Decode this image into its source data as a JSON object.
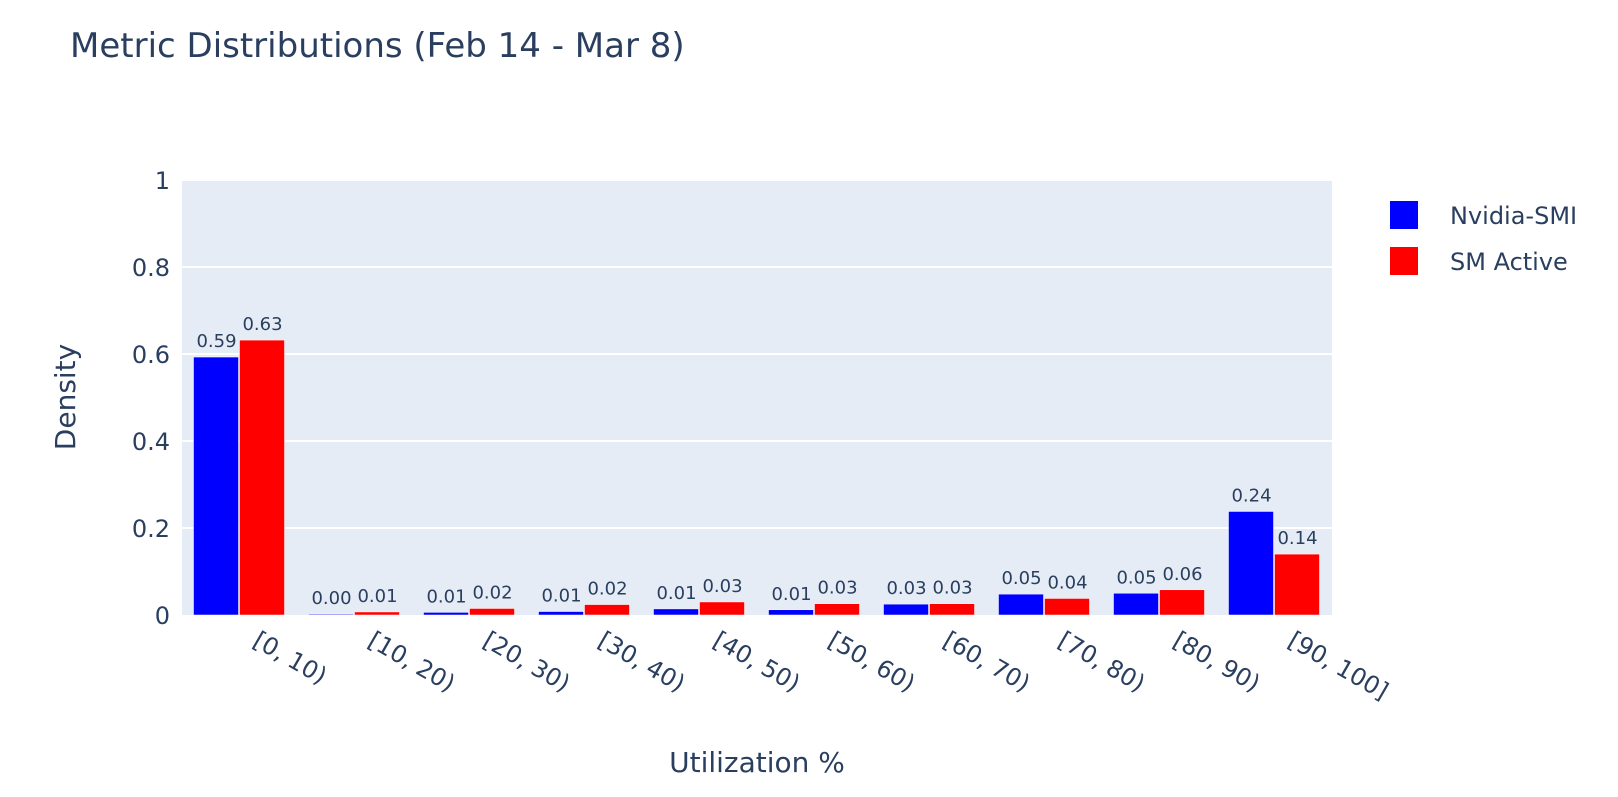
{
  "chart_data": {
    "type": "bar",
    "title": "Metric Distributions (Feb 14 - Mar 8)",
    "xlabel": "Utilization %",
    "ylabel": "Density",
    "ylim": [
      0,
      1
    ],
    "yticks": [
      0,
      0.2,
      0.4,
      0.6,
      0.8,
      1
    ],
    "ytick_labels": [
      "0",
      "0.2",
      "0.4",
      "0.6",
      "0.8",
      "1"
    ],
    "categories": [
      "[0, 10)",
      "[10, 20)",
      "[20, 30)",
      "[30, 40)",
      "[40, 50)",
      "[50, 60)",
      "[60, 70)",
      "[70, 80)",
      "[80, 90)",
      "[90, 100]"
    ],
    "series": [
      {
        "name": "Nvidia-SMI",
        "color": "#0000ff",
        "values": [
          0.593,
          0.002,
          0.006,
          0.008,
          0.014,
          0.012,
          0.025,
          0.048,
          0.05,
          0.238
        ],
        "labels": [
          "0.59",
          "0.00",
          "0.01",
          "0.01",
          "0.01",
          "0.01",
          "0.03",
          "0.05",
          "0.05",
          "0.24"
        ]
      },
      {
        "name": "SM Active",
        "color": "#ff0000",
        "values": [
          0.632,
          0.007,
          0.015,
          0.024,
          0.03,
          0.026,
          0.026,
          0.038,
          0.058,
          0.14
        ],
        "labels": [
          "0.63",
          "0.01",
          "0.02",
          "0.02",
          "0.03",
          "0.03",
          "0.03",
          "0.04",
          "0.06",
          "0.14"
        ]
      }
    ],
    "grid": true,
    "legend_position": "top-right",
    "plot_background": "#e5ecf6"
  }
}
